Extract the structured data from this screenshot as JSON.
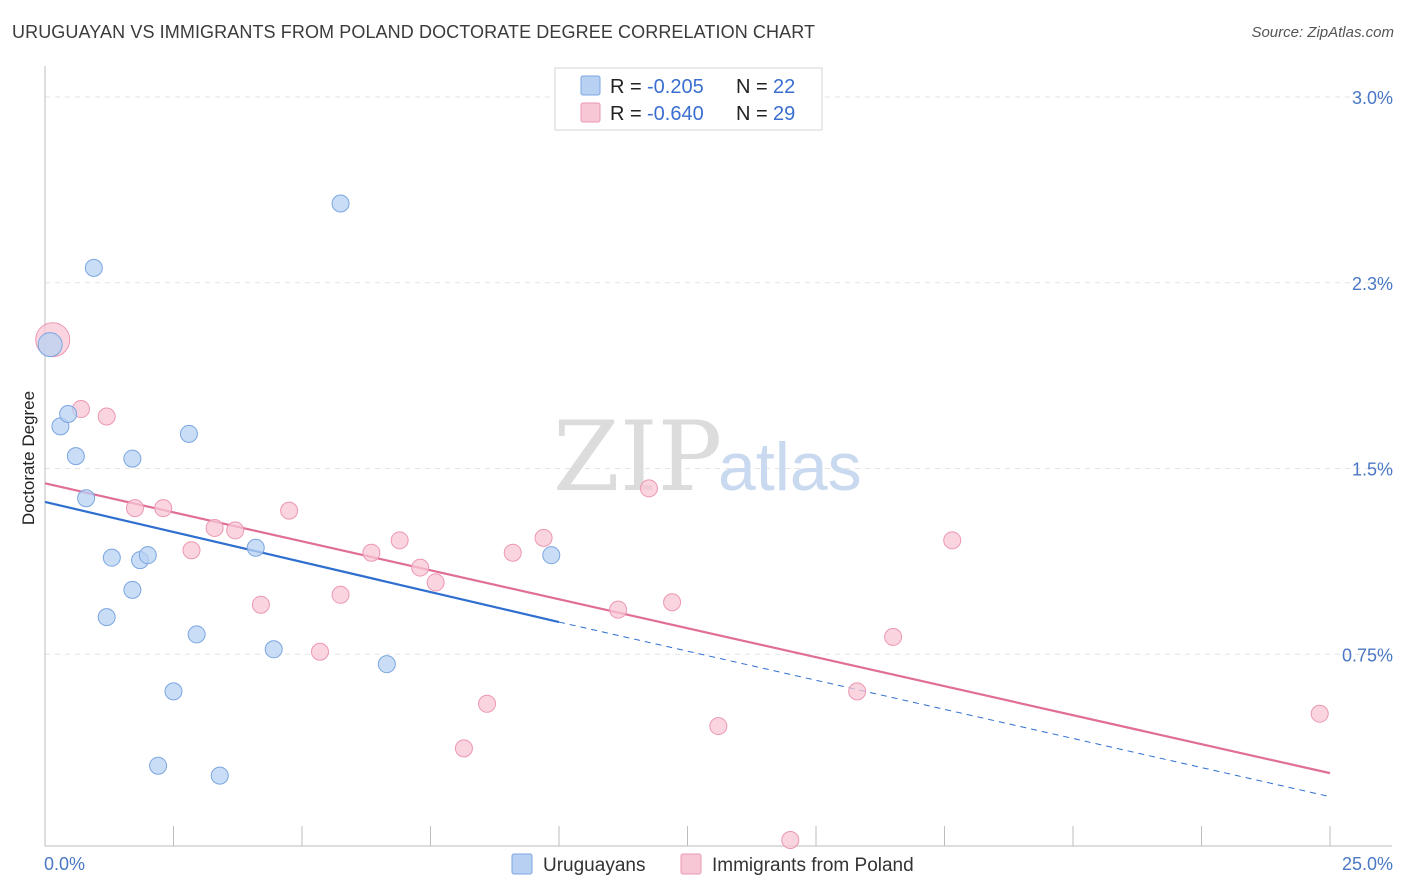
{
  "title": "URUGUAYAN VS IMMIGRANTS FROM POLAND DOCTORATE DEGREE CORRELATION CHART",
  "source": "Source: ZipAtlas.com",
  "watermark": {
    "zip": "ZIP",
    "atlas": "atlas"
  },
  "colors": {
    "blue_fill": "#b8d1f3",
    "blue_stroke": "#7aa6e0",
    "blue_line": "#2f6fcf",
    "pink_fill": "#f8c7d6",
    "pink_stroke": "#ec97b2",
    "pink_line": "#e06e96",
    "grid": "#e3e3e3",
    "axis": "#bdbdbd"
  },
  "legend": {
    "rows": [
      {
        "r_label": "R = ",
        "r_value": "-0.205",
        "n_label": "N = ",
        "n_value": "22"
      },
      {
        "r_label": "R = ",
        "r_value": "-0.640",
        "n_label": "N = ",
        "n_value": "29"
      }
    ]
  },
  "chart_data": {
    "type": "scatter",
    "title": "URUGUAYAN VS IMMIGRANTS FROM POLAND DOCTORATE DEGREE CORRELATION CHART",
    "xlabel": "",
    "ylabel": "Doctorate Degree",
    "xlim": [
      0,
      25
    ],
    "ylim": [
      0,
      3.0
    ],
    "x_tick_labels": [
      "0.0%",
      "25.0%"
    ],
    "y_ticks": [
      0.75,
      1.5,
      2.25,
      3.0
    ],
    "y_tick_labels": [
      "0.75%",
      "1.5%",
      "2.3%",
      "3.0%"
    ],
    "series": [
      {
        "name": "Uruguayans",
        "points": [
          [
            0.1,
            2.0
          ],
          [
            0.3,
            1.67
          ],
          [
            0.45,
            1.72
          ],
          [
            0.6,
            1.55
          ],
          [
            0.8,
            1.38
          ],
          [
            0.95,
            2.31
          ],
          [
            1.2,
            0.9
          ],
          [
            1.3,
            1.14
          ],
          [
            1.7,
            1.01
          ],
          [
            1.7,
            1.54
          ],
          [
            1.85,
            1.13
          ],
          [
            2.0,
            1.15
          ],
          [
            2.2,
            0.3
          ],
          [
            2.5,
            0.6
          ],
          [
            2.8,
            1.64
          ],
          [
            2.95,
            0.83
          ],
          [
            3.4,
            0.26
          ],
          [
            4.1,
            1.18
          ],
          [
            4.45,
            0.77
          ],
          [
            5.75,
            2.57
          ],
          [
            6.65,
            0.71
          ],
          [
            9.85,
            1.15
          ]
        ],
        "trend": {
          "x_start": 0,
          "y_start": 1.365,
          "x_end": 10.0,
          "y_end": 0.88,
          "dashed_to": 25,
          "dashed_y_end": 0.175
        }
      },
      {
        "name": "Immigrants from Poland",
        "points": [
          [
            0.15,
            2.02
          ],
          [
            0.7,
            1.74
          ],
          [
            1.2,
            1.71
          ],
          [
            1.75,
            1.34
          ],
          [
            2.3,
            1.34
          ],
          [
            2.85,
            1.17
          ],
          [
            3.3,
            1.26
          ],
          [
            3.7,
            1.25
          ],
          [
            4.2,
            0.95
          ],
          [
            4.75,
            1.33
          ],
          [
            5.35,
            0.76
          ],
          [
            5.75,
            0.99
          ],
          [
            6.35,
            1.16
          ],
          [
            6.9,
            1.21
          ],
          [
            7.3,
            1.1
          ],
          [
            7.6,
            1.04
          ],
          [
            8.15,
            0.37
          ],
          [
            8.6,
            0.55
          ],
          [
            9.1,
            1.16
          ],
          [
            9.7,
            1.22
          ],
          [
            11.15,
            0.93
          ],
          [
            11.75,
            1.42
          ],
          [
            12.2,
            0.96
          ],
          [
            13.1,
            0.46
          ],
          [
            14.5,
            0.0
          ],
          [
            15.8,
            0.6
          ],
          [
            16.5,
            0.82
          ],
          [
            17.65,
            1.21
          ],
          [
            24.8,
            0.51
          ]
        ],
        "trend": {
          "x_start": 0,
          "y_start": 1.44,
          "x_end": 25,
          "y_end": 0.27
        }
      }
    ],
    "legend_position": "top-center",
    "bottom_legend": [
      "Uruguayans",
      "Immigrants from Poland"
    ]
  }
}
